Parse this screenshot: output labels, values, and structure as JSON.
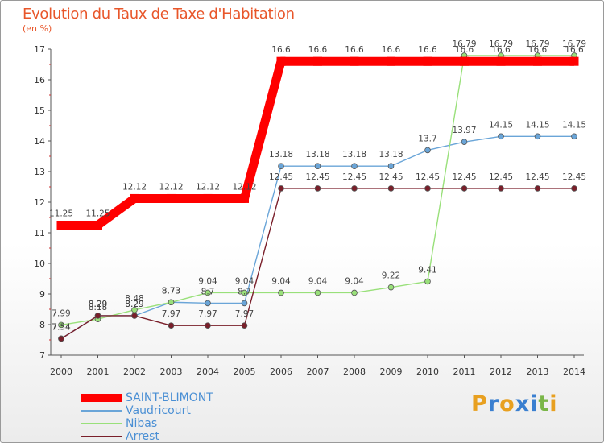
{
  "title": "Evolution du Taux de Taxe d'Habitation",
  "unit": "(en %)",
  "brand": {
    "letters": [
      {
        "ch": "P",
        "color": "#e8a020"
      },
      {
        "ch": "r",
        "color": "#3a7fd0"
      },
      {
        "ch": "o",
        "color": "#e8a020"
      },
      {
        "ch": "x",
        "color": "#3a7fd0"
      },
      {
        "ch": "i",
        "color": "#3a7fd0"
      },
      {
        "ch": "t",
        "color": "#7ab648"
      },
      {
        "ch": "i",
        "color": "#e8a020"
      }
    ]
  },
  "chart_data": {
    "type": "line",
    "title": "Evolution du Taux de Taxe d'Habitation",
    "ylabel": "(en %)",
    "xlabel": "",
    "ylim": [
      7,
      17
    ],
    "yticks": [
      7,
      8,
      9,
      10,
      11,
      12,
      13,
      14,
      15,
      16,
      17
    ],
    "grid": false,
    "legend_position": "bottom-left",
    "x": [
      2000,
      2001,
      2002,
      2003,
      2004,
      2005,
      2006,
      2007,
      2008,
      2009,
      2010,
      2011,
      2012,
      2013,
      2014
    ],
    "series": [
      {
        "name": "SAINT-BLIMONT",
        "color": "#ff0000",
        "emphasis": true,
        "values": [
          11.25,
          11.25,
          12.12,
          12.12,
          12.12,
          12.12,
          16.6,
          16.6,
          16.6,
          16.6,
          16.6,
          16.6,
          16.6,
          16.6,
          16.6
        ],
        "labels": [
          "11.25",
          "11.25",
          "12.12",
          "12.12",
          "12.12",
          "12.12",
          "16.6",
          "16.6",
          "16.6",
          "16.6",
          "16.6",
          "16.6",
          "16.6",
          "16.6",
          "16.6"
        ]
      },
      {
        "name": "Vaudricourt",
        "color": "#6aa5d8",
        "emphasis": false,
        "values": [
          7.54,
          8.29,
          8.29,
          8.73,
          8.7,
          8.7,
          13.18,
          13.18,
          13.18,
          13.18,
          13.7,
          13.97,
          14.15,
          14.15,
          14.15
        ],
        "labels": [
          "7.54",
          "8.29",
          "8.29",
          "8.73",
          "8.7",
          "8.7",
          "13.18",
          "13.18",
          "13.18",
          "13.18",
          "13.7",
          "13.97",
          "14.15",
          "14.15",
          "14.15"
        ]
      },
      {
        "name": "Nibas",
        "color": "#99e07a",
        "emphasis": false,
        "values": [
          7.99,
          8.18,
          8.48,
          8.73,
          9.04,
          9.04,
          9.04,
          9.04,
          9.04,
          9.22,
          9.41,
          16.79,
          16.79,
          16.79,
          16.79
        ],
        "labels": [
          "7.99",
          "8.18",
          "8.48",
          "8.73",
          "9.04",
          "9.04",
          "9.04",
          "9.04",
          "9.04",
          "9.22",
          "9.41",
          "16.79",
          "16.79",
          "16.79",
          "16.79"
        ]
      },
      {
        "name": "Arrest",
        "color": "#7a1f2a",
        "emphasis": false,
        "values": [
          7.54,
          8.29,
          8.29,
          7.97,
          7.97,
          7.97,
          12.45,
          12.45,
          12.45,
          12.45,
          12.45,
          12.45,
          12.45,
          12.45,
          12.45
        ],
        "labels": [
          "7.54",
          "8.29",
          "8.29",
          "7.97",
          "7.97",
          "7.97",
          "12.45",
          "12.45",
          "12.45",
          "12.45",
          "12.45",
          "12.45",
          "12.45",
          "12.45",
          "12.45"
        ]
      }
    ]
  }
}
